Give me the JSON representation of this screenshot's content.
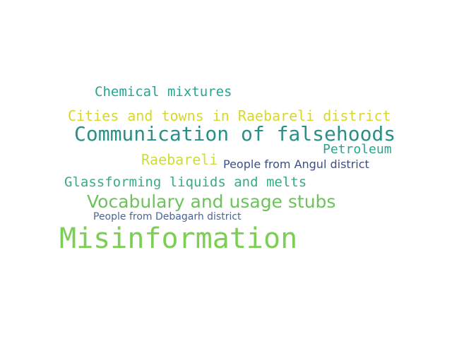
{
  "colors": {
    "background": "#ffffff",
    "teal": "#2a8f88",
    "sea_green": "#3aa98a",
    "yellow": "#d9d82a",
    "yellow_green": "#cfdb3a",
    "light_green": "#6cc35b",
    "green": "#7ccf54",
    "navy": "#3c4f8a",
    "slate_blue": "#4b6496",
    "teal_mid": "#2aa48f"
  },
  "words": [
    {
      "text": "Chemical mixtures",
      "color": "#2aa48f"
    },
    {
      "text": "Cities and towns in Raebareli district",
      "color": "#d9d82a"
    },
    {
      "text": "Communication of falsehoods",
      "color": "#2a8f88"
    },
    {
      "text": "Petroleum",
      "color": "#2aa48f"
    },
    {
      "text": "Raebareli",
      "color": "#cfdb3a"
    },
    {
      "text": "People from Angul district",
      "color": "#3c4f8a"
    },
    {
      "text": "Glassforming liquids and melts",
      "color": "#3aa98a"
    },
    {
      "text": "Vocabulary and usage stubs",
      "color": "#6cc35b"
    },
    {
      "text": "People from Debagarh district",
      "color": "#4b6496"
    },
    {
      "text": "Misinformation",
      "color": "#7ccf54"
    }
  ]
}
